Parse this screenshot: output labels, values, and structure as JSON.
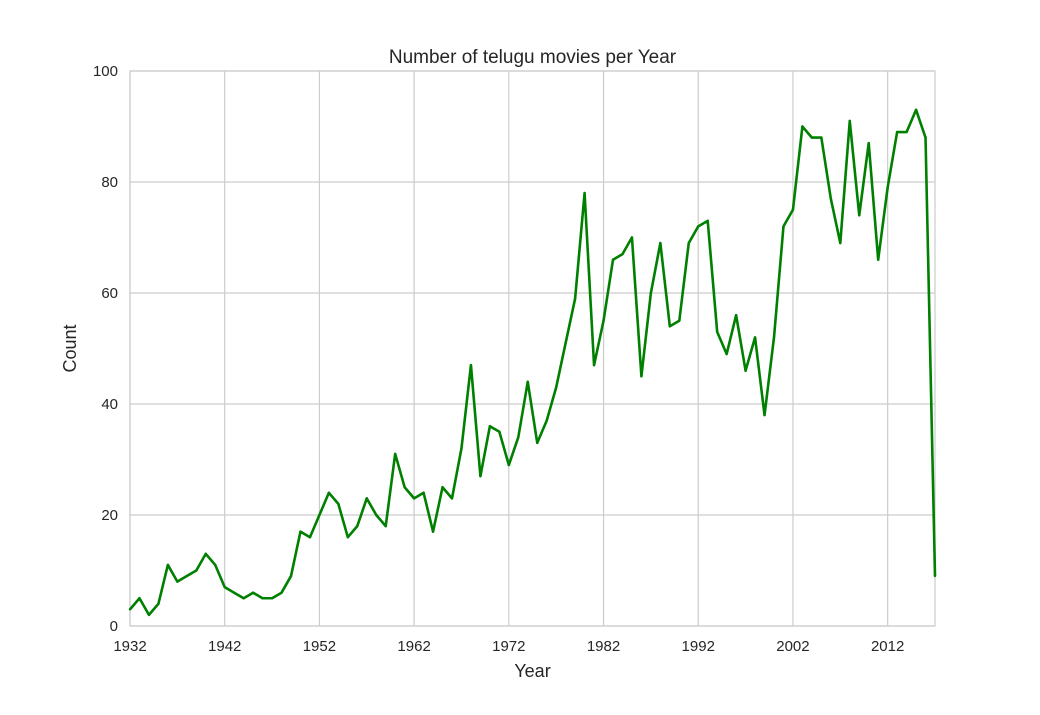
{
  "chart_data": {
    "type": "line",
    "title": "Number of telugu movies per Year",
    "xlabel": "Year",
    "ylabel": "Count",
    "xlim": [
      1932,
      2017
    ],
    "ylim": [
      0,
      100
    ],
    "x_ticks": [
      "1932",
      "1942",
      "1952",
      "1962",
      "1972",
      "1982",
      "1992",
      "2002",
      "2012"
    ],
    "y_ticks": [
      "0",
      "20",
      "40",
      "60",
      "80",
      "100"
    ],
    "grid": true,
    "line_color": "#008000",
    "series": [
      {
        "x": [
          1932,
          1933,
          1934,
          1935,
          1936,
          1937,
          1938,
          1939,
          1940,
          1941,
          1942,
          1943,
          1944,
          1945,
          1946,
          1947,
          1948,
          1949,
          1950,
          1951,
          1952,
          1953,
          1954,
          1955,
          1956,
          1957,
          1958,
          1959,
          1960,
          1961,
          1962,
          1963,
          1964,
          1965,
          1966,
          1967,
          1968,
          1969,
          1970,
          1971,
          1972,
          1973,
          1974,
          1975,
          1976,
          1977,
          1978,
          1979,
          1980,
          1981,
          1982,
          1983,
          1984,
          1985,
          1986,
          1987,
          1988,
          1989,
          1990,
          1991,
          1992,
          1993,
          1994,
          1995,
          1996,
          1997,
          1998,
          1999,
          2000,
          2001,
          2002,
          2003,
          2004,
          2005,
          2006,
          2007,
          2008,
          2009,
          2010,
          2011,
          2012,
          2013,
          2014,
          2015,
          2016,
          2017
        ],
        "values": [
          3,
          5,
          2,
          4,
          11,
          8,
          9,
          10,
          13,
          11,
          7,
          6,
          5,
          6,
          5,
          5,
          6,
          9,
          17,
          16,
          20,
          24,
          22,
          16,
          18,
          23,
          20,
          18,
          31,
          25,
          23,
          24,
          17,
          25,
          23,
          32,
          47,
          27,
          36,
          35,
          29,
          34,
          44,
          33,
          37,
          43,
          51,
          59,
          78,
          47,
          55,
          66,
          67,
          70,
          45,
          60,
          69,
          54,
          55,
          69,
          72,
          73,
          53,
          49,
          56,
          46,
          52,
          38,
          52,
          72,
          75,
          90,
          88,
          88,
          77,
          69,
          91,
          74,
          87,
          66,
          79,
          89,
          89,
          93,
          88,
          9
        ]
      }
    ]
  }
}
